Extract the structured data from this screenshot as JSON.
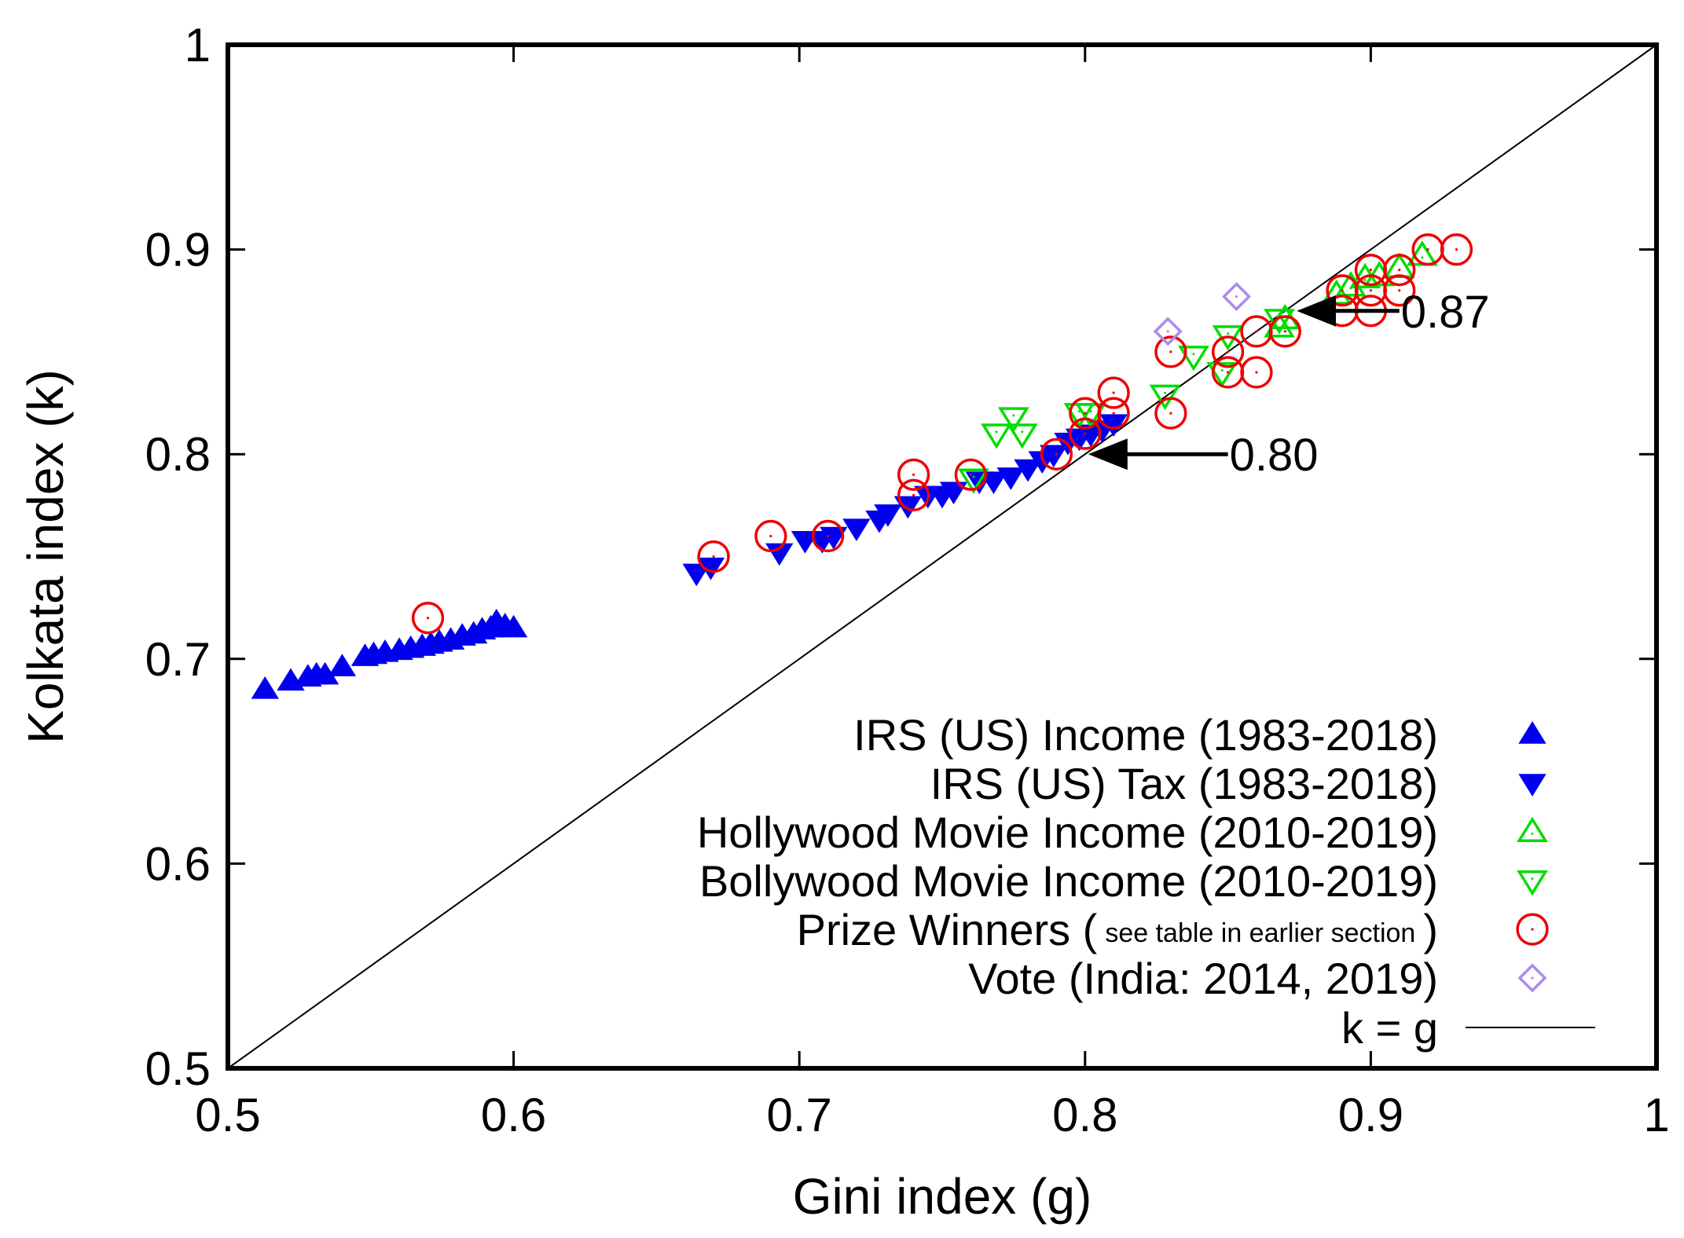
{
  "chart_data": {
    "type": "scatter",
    "xlabel": "Gini index (g)",
    "ylabel": "Kolkata index (k)",
    "xlim": [
      0.5,
      1.0
    ],
    "ylim": [
      0.5,
      1.0
    ],
    "x_ticks": [
      0.5,
      0.6,
      0.7,
      0.8,
      0.9,
      1.0
    ],
    "x_tick_labels": [
      "0.5",
      "0.6",
      "0.7",
      "0.8",
      "0.9",
      "1"
    ],
    "y_ticks": [
      0.5,
      0.6,
      0.7,
      0.8,
      0.9,
      1.0
    ],
    "y_tick_labels": [
      "0.5",
      "0.6",
      "0.7",
      "0.8",
      "0.9",
      "1"
    ],
    "grid": false,
    "legend_position": "bottom-right",
    "series": [
      {
        "key": "irs_income",
        "name": "IRS (US)  Income (1983-2018)",
        "marker": "triangle-up-filled",
        "color": "#0000ee",
        "points": [
          [
            0.513,
            0.685
          ],
          [
            0.522,
            0.689
          ],
          [
            0.528,
            0.691
          ],
          [
            0.531,
            0.692
          ],
          [
            0.534,
            0.692
          ],
          [
            0.54,
            0.696
          ],
          [
            0.548,
            0.701
          ],
          [
            0.551,
            0.702
          ],
          [
            0.555,
            0.703
          ],
          [
            0.56,
            0.704
          ],
          [
            0.564,
            0.705
          ],
          [
            0.568,
            0.706
          ],
          [
            0.571,
            0.707
          ],
          [
            0.574,
            0.708
          ],
          [
            0.578,
            0.709
          ],
          [
            0.582,
            0.711
          ],
          [
            0.586,
            0.712
          ],
          [
            0.589,
            0.714
          ],
          [
            0.592,
            0.715
          ],
          [
            0.594,
            0.718
          ],
          [
            0.597,
            0.716
          ],
          [
            0.6,
            0.715
          ]
        ]
      },
      {
        "key": "irs_tax",
        "name": "IRS (US) Tax (1983-2018)",
        "marker": "triangle-down-filled",
        "color": "#0000ee",
        "points": [
          [
            0.664,
            0.742
          ],
          [
            0.669,
            0.745
          ],
          [
            0.693,
            0.752
          ],
          [
            0.702,
            0.758
          ],
          [
            0.708,
            0.758
          ],
          [
            0.712,
            0.76
          ],
          [
            0.72,
            0.764
          ],
          [
            0.728,
            0.768
          ],
          [
            0.731,
            0.771
          ],
          [
            0.738,
            0.775
          ],
          [
            0.745,
            0.78
          ],
          [
            0.75,
            0.78
          ],
          [
            0.754,
            0.782
          ],
          [
            0.763,
            0.787
          ],
          [
            0.768,
            0.787
          ],
          [
            0.774,
            0.789
          ],
          [
            0.78,
            0.793
          ],
          [
            0.785,
            0.797
          ],
          [
            0.789,
            0.8
          ],
          [
            0.794,
            0.806
          ],
          [
            0.798,
            0.808
          ],
          [
            0.802,
            0.81
          ],
          [
            0.806,
            0.812
          ],
          [
            0.81,
            0.815
          ]
        ]
      },
      {
        "key": "hollywood",
        "name": "Hollywood Movie Income (2010-2019)",
        "marker": "triangle-up-open",
        "color": "#00dd00",
        "points": [
          [
            0.868,
            0.862
          ],
          [
            0.87,
            0.866
          ],
          [
            0.888,
            0.878
          ],
          [
            0.893,
            0.882
          ],
          [
            0.898,
            0.886
          ],
          [
            0.903,
            0.887
          ],
          [
            0.91,
            0.891
          ],
          [
            0.918,
            0.897
          ]
        ]
      },
      {
        "key": "bollywood",
        "name": "Bollywood Movie Income (2010-2019)",
        "marker": "triangle-down-open",
        "color": "#00dd00",
        "points": [
          [
            0.761,
            0.788
          ],
          [
            0.769,
            0.81
          ],
          [
            0.775,
            0.818
          ],
          [
            0.778,
            0.81
          ],
          [
            0.798,
            0.82
          ],
          [
            0.802,
            0.82
          ],
          [
            0.828,
            0.829
          ],
          [
            0.838,
            0.848
          ],
          [
            0.848,
            0.84
          ],
          [
            0.85,
            0.858
          ],
          [
            0.868,
            0.866
          ]
        ]
      },
      {
        "key": "prize",
        "name": "Prize Winners (",
        "name_note": "see table in earlier section",
        "name_suffix": ")",
        "marker": "circle-open-dot",
        "color": "#ee0000",
        "points": [
          [
            0.57,
            0.72
          ],
          [
            0.67,
            0.75
          ],
          [
            0.69,
            0.76
          ],
          [
            0.71,
            0.76
          ],
          [
            0.74,
            0.78
          ],
          [
            0.74,
            0.79
          ],
          [
            0.76,
            0.79
          ],
          [
            0.79,
            0.8
          ],
          [
            0.8,
            0.81
          ],
          [
            0.8,
            0.82
          ],
          [
            0.81,
            0.82
          ],
          [
            0.81,
            0.83
          ],
          [
            0.83,
            0.82
          ],
          [
            0.83,
            0.85
          ],
          [
            0.85,
            0.84
          ],
          [
            0.85,
            0.85
          ],
          [
            0.86,
            0.84
          ],
          [
            0.86,
            0.86
          ],
          [
            0.87,
            0.86
          ],
          [
            0.89,
            0.87
          ],
          [
            0.89,
            0.88
          ],
          [
            0.9,
            0.87
          ],
          [
            0.9,
            0.88
          ],
          [
            0.9,
            0.89
          ],
          [
            0.91,
            0.88
          ],
          [
            0.91,
            0.89
          ],
          [
            0.92,
            0.9
          ],
          [
            0.93,
            0.9
          ]
        ]
      },
      {
        "key": "vote",
        "name": "Vote (India: 2014, 2019)",
        "marker": "diamond-open-dot",
        "color": "#a98bf0",
        "points": [
          [
            0.829,
            0.86
          ],
          [
            0.853,
            0.877
          ]
        ]
      },
      {
        "key": "kg",
        "name": "k = g",
        "marker": "line",
        "color": "#000000",
        "points": [
          [
            0.5,
            0.5
          ],
          [
            1.0,
            1.0
          ]
        ]
      }
    ],
    "annotations": [
      {
        "text": "0.80",
        "arrow_to": [
          0.8,
          0.8
        ],
        "arrow_from": [
          0.85,
          0.8
        ]
      },
      {
        "text": "0.87",
        "arrow_to": [
          0.873,
          0.87
        ],
        "arrow_from": [
          0.91,
          0.87
        ]
      }
    ]
  }
}
